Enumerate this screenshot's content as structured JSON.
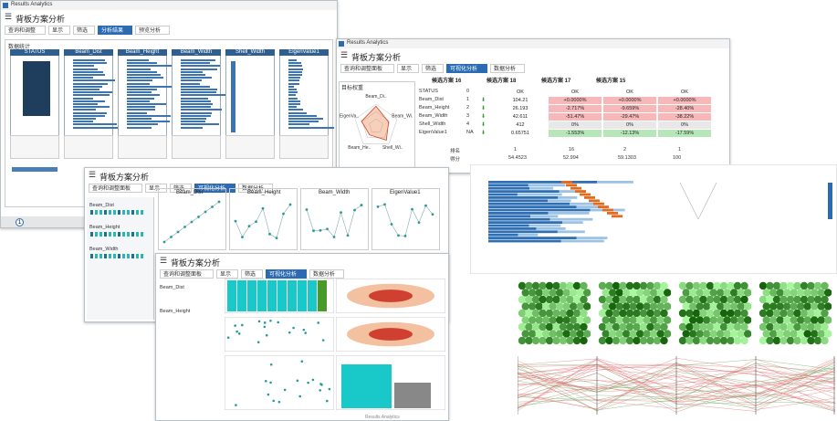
{
  "footer": "Results Analytics",
  "windowA": {
    "app": "Results Analytics",
    "title": "背板方案分析",
    "tabs": [
      "查询和调整",
      "显示",
      "筛选",
      "分析结果",
      "预览分析"
    ],
    "panel": "数据统计",
    "columns": [
      "STATUS",
      "Beam_Dist",
      "Beam_Height",
      "Beam_Width",
      "Shell_Width",
      "EigenValue1"
    ],
    "slider": "1"
  },
  "windowB": {
    "app": "Results Analytics",
    "title": "背板方案分析",
    "tabs": [
      "查询和调整面板",
      "显示",
      "筛选",
      "可视化分析",
      "数据分析"
    ],
    "radar_title": "目标权重",
    "radar_axes": [
      "Beam_Di..",
      "Beam_Wi..",
      "Shell_Wi..",
      "Beam_He..",
      "EigenVa.."
    ],
    "table": {
      "header": [
        "候选方案 16",
        "候选方案 18",
        "候选方案 17",
        "候选方案 15"
      ],
      "rows": [
        [
          "STATUS",
          "0",
          "OK",
          "OK",
          "OK",
          "OK"
        ],
        [
          "Beam_Dist",
          "1",
          "104.21",
          "+0.0000%",
          "+0.0000%",
          "+0.0000%"
        ],
        [
          "Beam_Height",
          "2",
          "26.193",
          "-2.717%",
          "-9.659%",
          "-28.40%"
        ],
        [
          "Beam_Width",
          "3",
          "42.611",
          "-51.47%",
          "-29.47%",
          "-38.22%"
        ],
        [
          "Shell_Width",
          "4",
          "412",
          "0%",
          "0%",
          "0%"
        ],
        [
          "EigenValue1",
          "NA",
          "0.65751",
          "-1.553%",
          "-12.13%",
          "-17.59%"
        ]
      ],
      "rank_label": "排名",
      "ranks": [
        "1",
        "16",
        "2",
        "1"
      ],
      "score_label": "得分",
      "scores": [
        "54.4523",
        "52.994",
        "59.1303",
        "100"
      ]
    }
  },
  "windowC": {
    "title": "背板方案分析",
    "charts": [
      "Beam_Dist",
      "Beam_Height",
      "Beam_Width",
      "EigenValue1"
    ],
    "side": [
      "Beam_Dist",
      "Beam_Height",
      "Beam_Width"
    ]
  },
  "windowD": {
    "title": "背板方案分析",
    "side": [
      "Beam_Dist",
      "Beam_Height"
    ]
  }
}
